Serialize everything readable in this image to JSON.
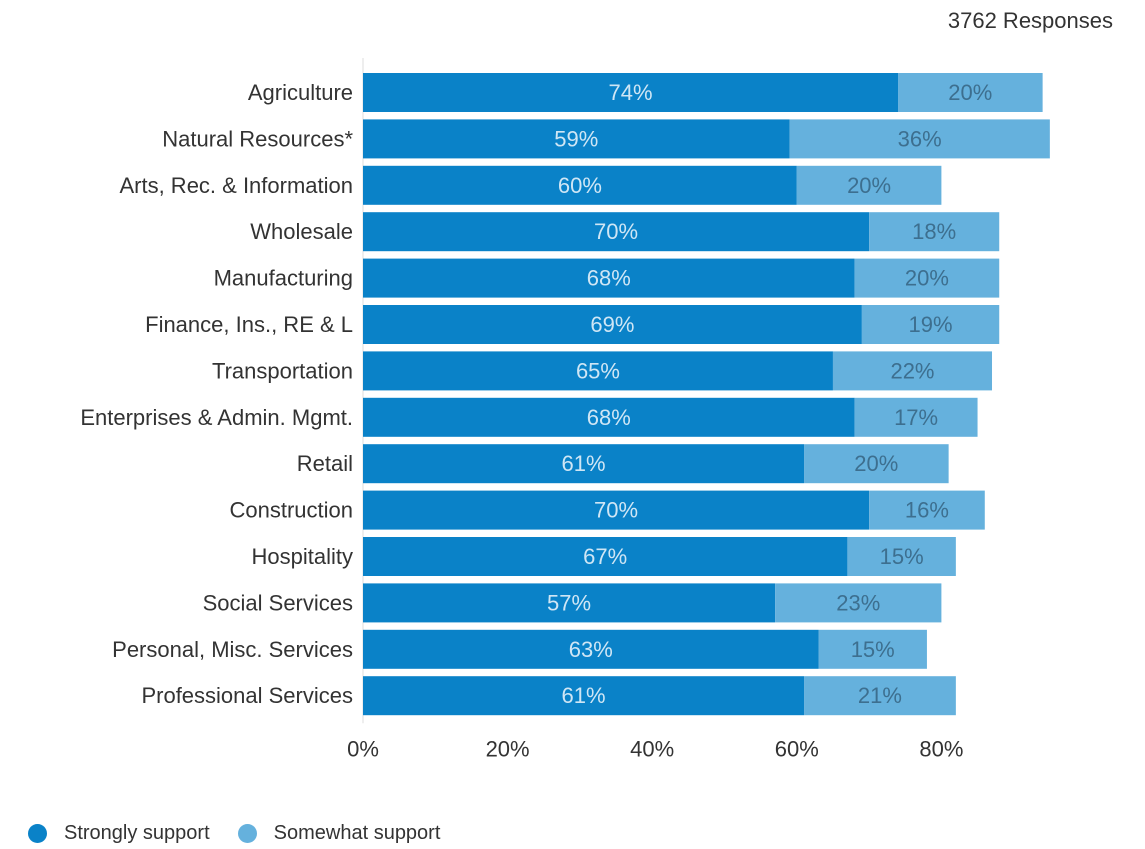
{
  "responses_label": "3762 Responses",
  "colors": {
    "strongly": "#0a82c8",
    "somewhat": "#65b1dd",
    "label_strong": "#cfe6f5",
    "label_some": "#3d6f8f",
    "axis": "#dddddd"
  },
  "legend": [
    {
      "name": "Strongly support",
      "color": "#0a82c8"
    },
    {
      "name": "Somewhat support",
      "color": "#65b1dd"
    }
  ],
  "chart_data": {
    "type": "bar",
    "orientation": "horizontal",
    "stacked": true,
    "categories": [
      "Agriculture",
      "Natural Resources*",
      "Arts, Rec. & Information",
      "Wholesale",
      "Manufacturing",
      "Finance, Ins., RE & L",
      "Transportation",
      "Enterprises & Admin. Mgmt.",
      "Retail",
      "Construction",
      "Hospitality",
      "Social Services",
      "Personal, Misc. Services",
      "Professional Services"
    ],
    "series": [
      {
        "name": "Strongly support",
        "values": [
          74,
          59,
          60,
          70,
          68,
          69,
          65,
          68,
          61,
          70,
          67,
          57,
          63,
          61
        ],
        "labels": [
          "74%",
          "59%",
          "60%",
          "70%",
          "68%",
          "69%",
          "65%",
          "68%",
          "61%",
          "70%",
          "67%",
          "57%",
          "63%",
          "61%"
        ]
      },
      {
        "name": "Somewhat support",
        "values": [
          20,
          36,
          20,
          18,
          20,
          19,
          22,
          17,
          20,
          16,
          15,
          23,
          15,
          21
        ],
        "labels": [
          "20%",
          "36%",
          "20%",
          "18%",
          "20%",
          "19%",
          "22%",
          "17%",
          "20%",
          "16%",
          "15%",
          "23%",
          "15%",
          "21%"
        ]
      }
    ],
    "xlim": [
      0,
      100
    ],
    "xticks": [
      0,
      20,
      40,
      60,
      80
    ],
    "xtick_labels": [
      "0%",
      "20%",
      "40%",
      "60%",
      "80%"
    ],
    "legend_position": "bottom-left",
    "grid": false
  }
}
